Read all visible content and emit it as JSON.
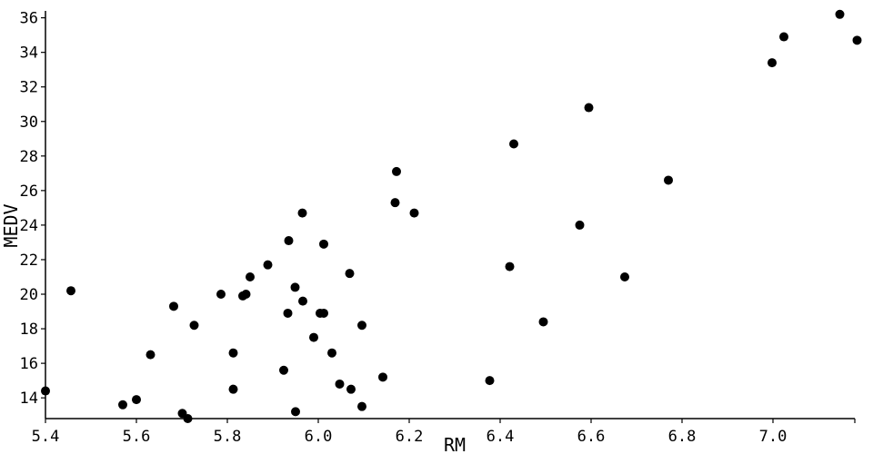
{
  "chart_data": {
    "type": "scatter",
    "title": "",
    "xlabel": "RM",
    "ylabel": "MEDV",
    "xlim": [
      5.4,
      7.18
    ],
    "ylim": [
      12.8,
      36.4
    ],
    "xticks": [
      "5.4",
      "5.6",
      "5.8",
      "6.0",
      "6.2",
      "6.4",
      "6.6",
      "6.8",
      "7.0"
    ],
    "yticks": [
      "14",
      "16",
      "18",
      "20",
      "22",
      "24",
      "26",
      "28",
      "30",
      "32",
      "34",
      "36"
    ],
    "grid": false,
    "marker_color": "#000000",
    "points": [
      {
        "x": 5.4,
        "y": 14.4
      },
      {
        "x": 5.456,
        "y": 20.2
      },
      {
        "x": 5.57,
        "y": 13.6
      },
      {
        "x": 5.6,
        "y": 13.9
      },
      {
        "x": 5.631,
        "y": 16.5
      },
      {
        "x": 5.682,
        "y": 19.3
      },
      {
        "x": 5.701,
        "y": 13.1
      },
      {
        "x": 5.713,
        "y": 12.8
      },
      {
        "x": 5.727,
        "y": 18.2
      },
      {
        "x": 5.786,
        "y": 20.0
      },
      {
        "x": 5.813,
        "y": 14.5
      },
      {
        "x": 5.813,
        "y": 16.6
      },
      {
        "x": 5.834,
        "y": 19.9
      },
      {
        "x": 5.841,
        "y": 20.0
      },
      {
        "x": 5.85,
        "y": 21.0
      },
      {
        "x": 5.889,
        "y": 21.7
      },
      {
        "x": 5.924,
        "y": 15.6
      },
      {
        "x": 5.933,
        "y": 18.9
      },
      {
        "x": 5.935,
        "y": 23.1
      },
      {
        "x": 5.949,
        "y": 20.4
      },
      {
        "x": 5.95,
        "y": 13.2
      },
      {
        "x": 5.965,
        "y": 24.7
      },
      {
        "x": 5.966,
        "y": 19.6
      },
      {
        "x": 5.99,
        "y": 17.5
      },
      {
        "x": 6.004,
        "y": 18.9
      },
      {
        "x": 6.012,
        "y": 18.9
      },
      {
        "x": 6.012,
        "y": 22.9
      },
      {
        "x": 6.03,
        "y": 16.6
      },
      {
        "x": 6.047,
        "y": 14.8
      },
      {
        "x": 6.069,
        "y": 21.2
      },
      {
        "x": 6.072,
        "y": 14.5
      },
      {
        "x": 6.096,
        "y": 18.2
      },
      {
        "x": 6.096,
        "y": 13.5
      },
      {
        "x": 6.142,
        "y": 15.2
      },
      {
        "x": 6.169,
        "y": 25.3
      },
      {
        "x": 6.172,
        "y": 27.1
      },
      {
        "x": 6.211,
        "y": 24.7
      },
      {
        "x": 6.377,
        "y": 15.0
      },
      {
        "x": 6.421,
        "y": 21.6
      },
      {
        "x": 6.43,
        "y": 28.7
      },
      {
        "x": 6.495,
        "y": 18.4
      },
      {
        "x": 6.575,
        "y": 24.0
      },
      {
        "x": 6.595,
        "y": 30.8
      },
      {
        "x": 6.674,
        "y": 21.0
      },
      {
        "x": 6.77,
        "y": 26.6
      },
      {
        "x": 6.998,
        "y": 33.4
      },
      {
        "x": 7.024,
        "y": 34.9
      },
      {
        "x": 7.147,
        "y": 36.2
      },
      {
        "x": 7.185,
        "y": 34.7
      }
    ]
  }
}
